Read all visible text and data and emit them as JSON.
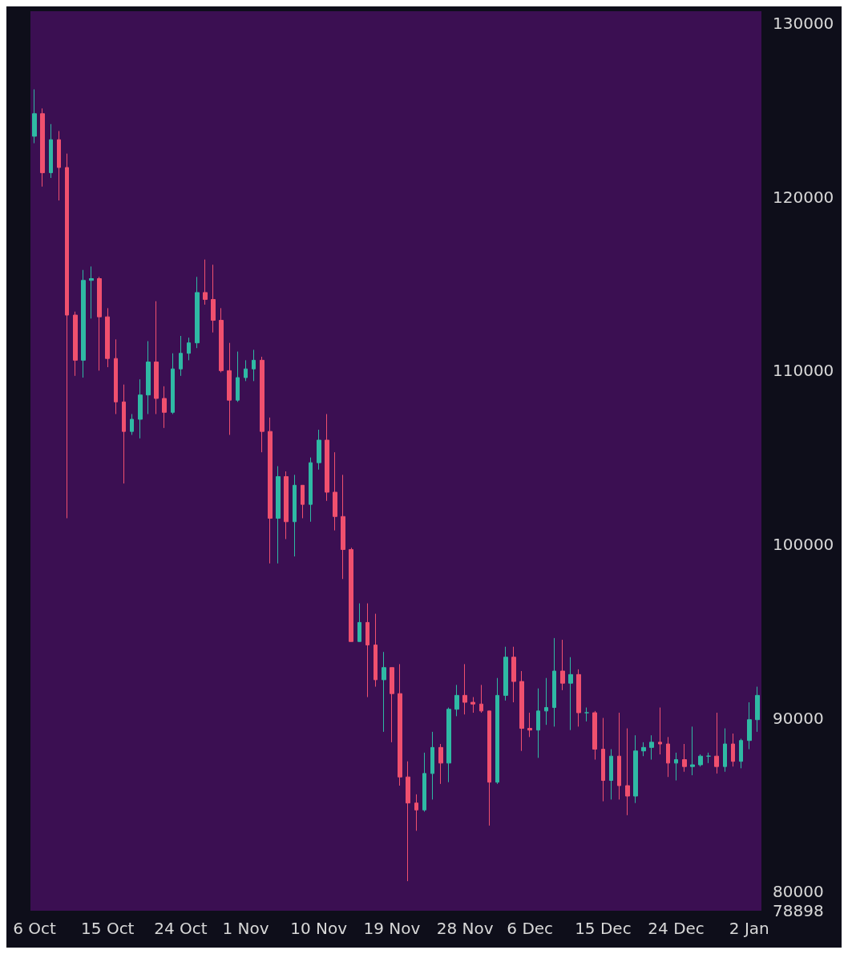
{
  "chart_data": {
    "type": "candlestick",
    "categories": [
      "6 Oct",
      null,
      null,
      null,
      null,
      null,
      null,
      null,
      null,
      "15 Oct",
      null,
      null,
      null,
      null,
      null,
      null,
      null,
      null,
      "24 Oct",
      null,
      null,
      null,
      null,
      null,
      null,
      null,
      "1 Nov",
      null,
      null,
      null,
      null,
      null,
      null,
      null,
      null,
      "10 Nov",
      null,
      null,
      null,
      null,
      null,
      null,
      null,
      null,
      "19 Nov",
      null,
      null,
      null,
      null,
      null,
      null,
      null,
      null,
      "28 Nov",
      null,
      null,
      null,
      null,
      null,
      null,
      null,
      "6 Dec",
      null,
      null,
      null,
      null,
      null,
      null,
      null,
      null,
      "15 Dec",
      null,
      null,
      null,
      null,
      null,
      null,
      null,
      null,
      "24 Dec",
      null,
      null,
      null,
      null,
      null,
      null,
      null,
      null,
      "2 Jan",
      null
    ],
    "ohlc": [
      [
        123500,
        126200,
        123100,
        124800
      ],
      [
        124800,
        125100,
        120600,
        121400
      ],
      [
        121400,
        124200,
        121100,
        123300
      ],
      [
        123300,
        123800,
        119800,
        121700
      ],
      [
        121700,
        122500,
        101500,
        113200
      ],
      [
        113200,
        113400,
        109700,
        110600
      ],
      [
        110600,
        115800,
        109600,
        115200
      ],
      [
        115200,
        116000,
        113000,
        115300
      ],
      [
        115300,
        115400,
        110000,
        113100
      ],
      [
        113100,
        113600,
        110200,
        110700
      ],
      [
        110700,
        111800,
        107500,
        108200
      ],
      [
        108200,
        109200,
        103500,
        106500
      ],
      [
        106500,
        107500,
        106300,
        107200
      ],
      [
        107200,
        109500,
        106100,
        108600
      ],
      [
        108600,
        111700,
        107500,
        110500
      ],
      [
        110500,
        114000,
        107500,
        108400
      ],
      [
        108400,
        109100,
        106700,
        107600
      ],
      [
        107600,
        111000,
        107500,
        110100
      ],
      [
        110100,
        112000,
        109700,
        111000
      ],
      [
        111000,
        111900,
        110600,
        111600
      ],
      [
        111600,
        115400,
        111300,
        114500
      ],
      [
        114500,
        116400,
        113800,
        114100
      ],
      [
        114100,
        116100,
        112200,
        112900
      ],
      [
        112900,
        113600,
        109900,
        110000
      ],
      [
        110000,
        111600,
        106300,
        108300
      ],
      [
        108300,
        111100,
        108200,
        109600
      ],
      [
        109600,
        110600,
        109400,
        110100
      ],
      [
        110100,
        111200,
        109400,
        110600
      ],
      [
        110600,
        110800,
        105300,
        106500
      ],
      [
        106500,
        107300,
        98900,
        101500
      ],
      [
        101500,
        104500,
        98900,
        103900
      ],
      [
        103900,
        104200,
        100300,
        101300
      ],
      [
        101300,
        104000,
        99300,
        103400
      ],
      [
        103400,
        103400,
        101500,
        102300
      ],
      [
        102300,
        105000,
        101300,
        104700
      ],
      [
        104700,
        106600,
        104300,
        106000
      ],
      [
        106000,
        107500,
        102500,
        103000
      ],
      [
        103000,
        105300,
        100800,
        101600
      ],
      [
        101600,
        104000,
        98000,
        99700
      ],
      [
        99700,
        99800,
        94400,
        94400
      ],
      [
        94400,
        96600,
        94400,
        95500
      ],
      [
        95500,
        96600,
        91200,
        94200
      ],
      [
        94200,
        96000,
        91800,
        92200
      ],
      [
        92200,
        93800,
        89200,
        92900
      ],
      [
        92900,
        92900,
        88600,
        91400
      ],
      [
        91400,
        93100,
        86100,
        86600
      ],
      [
        86600,
        87500,
        80600,
        85100
      ],
      [
        85100,
        85600,
        83500,
        84700
      ],
      [
        84700,
        88000,
        84600,
        86800
      ],
      [
        86800,
        89200,
        85300,
        88300
      ],
      [
        88300,
        88500,
        86200,
        87400
      ],
      [
        87400,
        90600,
        86300,
        90500
      ],
      [
        90500,
        91900,
        90100,
        91300
      ],
      [
        91300,
        93100,
        90200,
        90900
      ],
      [
        90900,
        91200,
        90300,
        90800
      ],
      [
        90800,
        91900,
        90300,
        90400
      ],
      [
        90400,
        90400,
        83800,
        86300
      ],
      [
        86300,
        92300,
        86200,
        91300
      ],
      [
        91300,
        94100,
        91000,
        93500
      ],
      [
        93500,
        94100,
        90900,
        92100
      ],
      [
        92100,
        92700,
        88100,
        89400
      ],
      [
        89400,
        90300,
        88900,
        89300
      ],
      [
        89300,
        91700,
        87700,
        90400
      ],
      [
        90400,
        92300,
        89600,
        90600
      ],
      [
        90600,
        94600,
        89500,
        92700
      ],
      [
        92700,
        94500,
        91600,
        92000
      ],
      [
        92000,
        93500,
        89300,
        92500
      ],
      [
        92500,
        92800,
        89500,
        90300
      ],
      [
        90300,
        90600,
        89800,
        90300
      ],
      [
        90300,
        90400,
        87600,
        88200
      ],
      [
        88200,
        90000,
        85200,
        86400
      ],
      [
        86400,
        88200,
        85300,
        87800
      ],
      [
        87800,
        90300,
        85300,
        86100
      ],
      [
        86100,
        89400,
        84400,
        85500
      ],
      [
        85500,
        89000,
        85100,
        88100
      ],
      [
        88100,
        88600,
        87800,
        88300
      ],
      [
        88300,
        89000,
        87600,
        88600
      ],
      [
        88600,
        90600,
        87900,
        88500
      ],
      [
        88500,
        88900,
        86600,
        87400
      ],
      [
        87400,
        88000,
        86400,
        87600
      ],
      [
        87600,
        88500,
        86900,
        87200
      ],
      [
        87200,
        89500,
        86700,
        87300
      ],
      [
        87300,
        87900,
        87200,
        87800
      ],
      [
        87800,
        88000,
        87400,
        87800
      ],
      [
        87800,
        90300,
        86800,
        87200
      ],
      [
        87200,
        89400,
        86900,
        88500
      ],
      [
        88500,
        89100,
        87200,
        87500
      ],
      [
        87500,
        88800,
        87100,
        88700
      ],
      [
        88700,
        90900,
        88200,
        89900
      ],
      [
        89900,
        91800,
        89200,
        91300
      ]
    ],
    "ylim": [
      78898,
      130700
    ],
    "yticks": [
      78898,
      80000,
      90000,
      100000,
      110000,
      120000,
      130000
    ]
  }
}
